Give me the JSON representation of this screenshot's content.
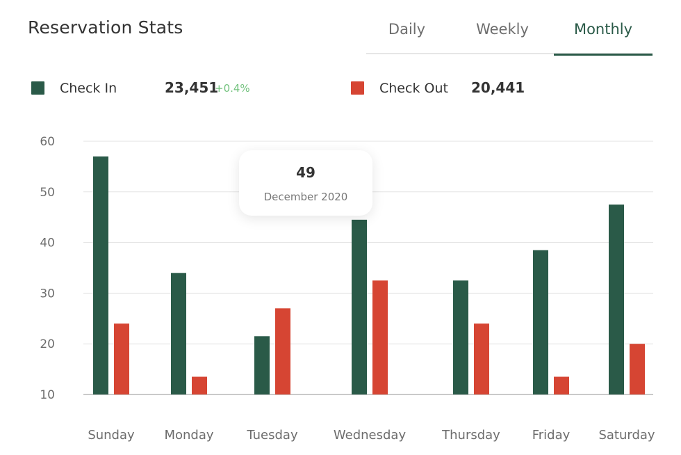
{
  "header": {
    "title": "Reservation Stats"
  },
  "tabs": {
    "daily": "Daily",
    "weekly": "Weekly",
    "monthly": "Monthly",
    "active": "monthly"
  },
  "legend": {
    "check_in": {
      "label": "Check In",
      "value": "23,451",
      "change": "+0.4%",
      "color": "#2a5a48"
    },
    "check_out": {
      "label": "Check Out",
      "value": "20,441",
      "color": "#d64533"
    }
  },
  "tooltip": {
    "value": "49",
    "label": "December 2020"
  },
  "chart_data": {
    "type": "bar",
    "categories": [
      "Sunday",
      "Monday",
      "Tuesday",
      "Wednesday",
      "Thursday",
      "Friday",
      "Saturday"
    ],
    "series": [
      {
        "name": "Check In",
        "values": [
          57,
          34,
          21.5,
          44.5,
          32.5,
          38.5,
          47.5
        ],
        "color": "#2a5a48"
      },
      {
        "name": "Check Out",
        "values": [
          24,
          13.5,
          27,
          32.5,
          24,
          13.5,
          20
        ],
        "color": "#d64533"
      }
    ],
    "yticks": [
      10,
      20,
      30,
      40,
      50,
      60
    ],
    "ylim": [
      10,
      60
    ],
    "grid": true,
    "legend_position": "top-left"
  }
}
